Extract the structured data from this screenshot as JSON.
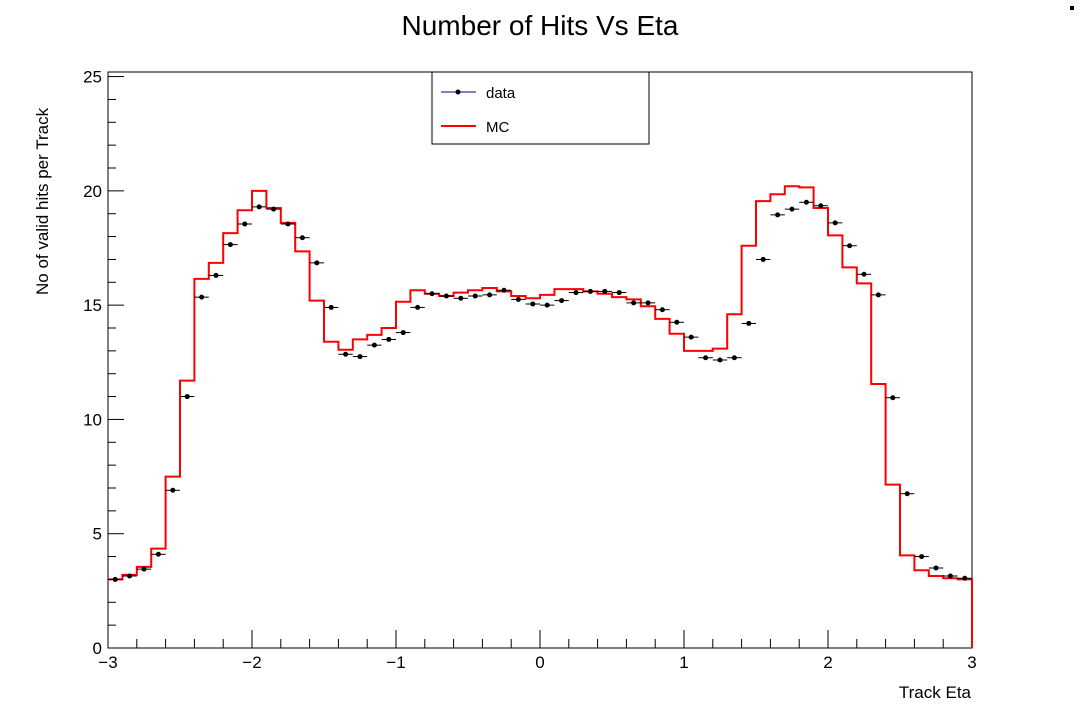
{
  "chart_data": {
    "type": "line",
    "title": "Number of Hits Vs Eta",
    "xlabel": "Track Eta",
    "ylabel": "No of valid hits per Track",
    "xlim": [
      -3,
      3
    ],
    "ylim": [
      0,
      25.2
    ],
    "x_ticks": [
      "−3",
      "−2",
      "−1",
      "0",
      "1",
      "2",
      "3"
    ],
    "y_ticks": [
      "0",
      "5",
      "10",
      "15",
      "20",
      "25"
    ],
    "grid": false,
    "legend": {
      "placement": "top-center",
      "entries": [
        "data",
        "MC"
      ]
    },
    "bin_width": 0.1,
    "bin_centers": [
      -2.95,
      -2.85,
      -2.75,
      -2.65,
      -2.55,
      -2.45,
      -2.35,
      -2.25,
      -2.15,
      -2.05,
      -1.95,
      -1.85,
      -1.75,
      -1.65,
      -1.55,
      -1.45,
      -1.35,
      -1.25,
      -1.15,
      -1.05,
      -0.95,
      -0.85,
      -0.75,
      -0.65,
      -0.55,
      -0.45,
      -0.35,
      -0.25,
      -0.15,
      -0.05,
      0.05,
      0.15,
      0.25,
      0.35,
      0.45,
      0.55,
      0.65,
      0.75,
      0.85,
      0.95,
      1.05,
      1.15,
      1.25,
      1.35,
      1.45,
      1.55,
      1.65,
      1.75,
      1.85,
      1.95,
      2.05,
      2.15,
      2.25,
      2.35,
      2.45,
      2.55,
      2.65,
      2.75,
      2.85,
      2.95
    ],
    "series": [
      {
        "name": "data",
        "style": "points",
        "color": "#000000",
        "values": [
          3.0,
          3.15,
          3.45,
          4.1,
          6.9,
          11.0,
          15.35,
          16.3,
          17.65,
          18.55,
          19.3,
          19.2,
          18.55,
          17.95,
          16.85,
          14.9,
          12.85,
          12.75,
          13.25,
          13.5,
          13.8,
          14.9,
          15.5,
          15.4,
          15.3,
          15.4,
          15.45,
          15.65,
          15.25,
          15.05,
          15.0,
          15.2,
          15.55,
          15.6,
          15.6,
          15.55,
          15.1,
          15.1,
          14.8,
          14.25,
          13.6,
          12.7,
          12.6,
          12.7,
          14.2,
          17.0,
          18.95,
          19.2,
          19.5,
          19.35,
          18.6,
          17.6,
          16.35,
          15.45,
          10.95,
          6.75,
          4.0,
          3.5,
          3.15,
          3.05
        ]
      },
      {
        "name": "MC",
        "style": "step",
        "color": "#ff0000",
        "values": [
          3.0,
          3.2,
          3.55,
          4.35,
          7.5,
          11.7,
          16.15,
          16.85,
          18.15,
          19.15,
          20.0,
          19.25,
          18.6,
          17.35,
          15.2,
          13.4,
          13.05,
          13.5,
          13.7,
          14.0,
          15.15,
          15.65,
          15.5,
          15.4,
          15.55,
          15.65,
          15.75,
          15.6,
          15.4,
          15.3,
          15.45,
          15.7,
          15.7,
          15.6,
          15.5,
          15.35,
          15.25,
          14.95,
          14.4,
          13.75,
          13.0,
          13.0,
          13.1,
          14.6,
          17.6,
          19.55,
          19.85,
          20.2,
          20.15,
          19.25,
          18.05,
          16.65,
          15.95,
          11.55,
          7.15,
          4.05,
          3.4,
          3.15,
          3.05,
          3.0
        ]
      }
    ]
  }
}
